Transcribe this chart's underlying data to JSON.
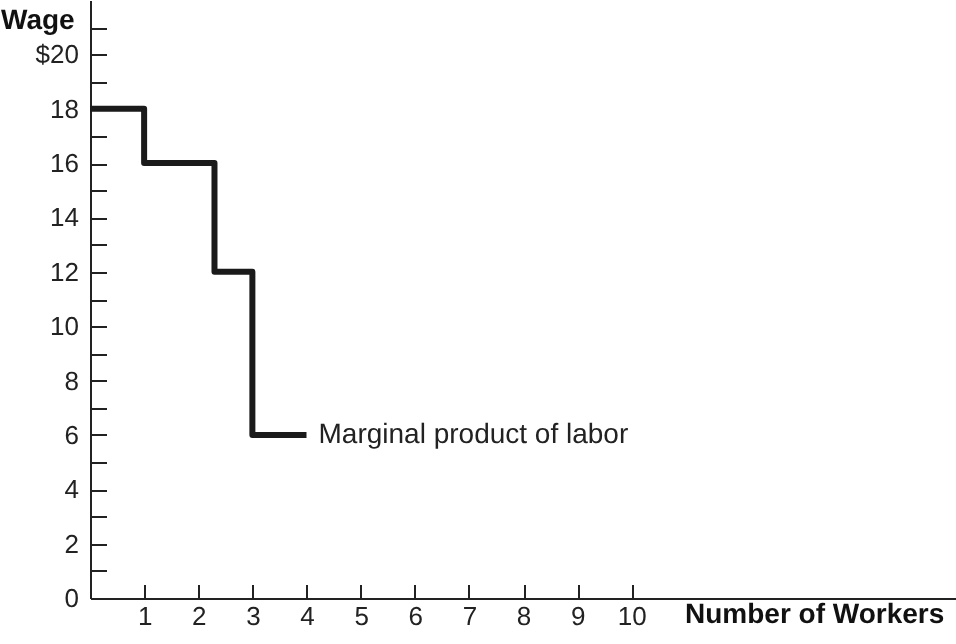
{
  "chart_data": {
    "type": "step",
    "xlabel": "Number of Workers",
    "ylabel": "Wage",
    "x": [
      0,
      1,
      2.3,
      3,
      4
    ],
    "series": [
      {
        "color": "#1a1a1a",
        "values": [
          18,
          16,
          12,
          6,
          6
        ]
      }
    ],
    "annotations": [
      {
        "text": "Marginal product of labor",
        "x": 4,
        "y": 6
      }
    ],
    "xlim": [
      0,
      16
    ],
    "xticks": [
      1,
      2,
      3,
      4,
      5,
      6,
      7,
      8,
      9,
      10
    ],
    "ylim": [
      0,
      22
    ],
    "yticks": [
      0,
      {
        "value": 1,
        "label": null
      },
      2,
      {
        "value": 3,
        "label": null
      },
      4,
      {
        "value": 5,
        "label": null
      },
      6,
      {
        "value": 7,
        "label": null
      },
      8,
      {
        "value": 9,
        "label": null
      },
      10,
      {
        "value": 11,
        "label": null
      },
      12,
      {
        "value": 13,
        "label": null
      },
      14,
      {
        "value": 15,
        "label": null
      },
      16,
      {
        "value": 17,
        "label": null
      },
      18,
      {
        "value": 19,
        "label": null
      },
      {
        "value": 20,
        "label": "$20"
      },
      {
        "value": 21,
        "label": null
      }
    ],
    "grid": false,
    "marker": "none",
    "line_style": "solid"
  }
}
